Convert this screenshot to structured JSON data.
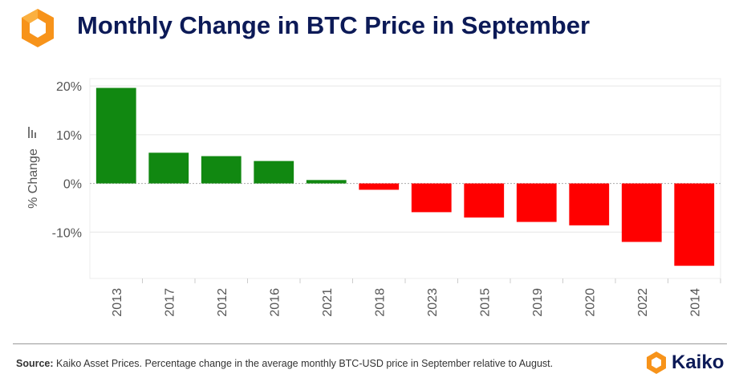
{
  "header": {
    "title": "Monthly Change in BTC Price in September"
  },
  "chart_data": {
    "type": "bar",
    "title": "Monthly Change in BTC Price in September",
    "xlabel": "",
    "ylabel": "% Change",
    "categories": [
      "2013",
      "2017",
      "2012",
      "2016",
      "2021",
      "2018",
      "2023",
      "2015",
      "2019",
      "2020",
      "2022",
      "2014"
    ],
    "values": [
      19.6,
      6.3,
      5.6,
      4.6,
      0.7,
      -1.3,
      -5.9,
      -7.0,
      -7.9,
      -8.6,
      -12.0,
      -16.9
    ],
    "y_ticks": [
      20,
      10,
      0,
      -10
    ],
    "y_tick_labels": [
      "20%",
      "10%",
      "0%",
      "-10%"
    ],
    "ylim": [
      -19.5,
      21.5
    ],
    "grid": true,
    "legend": "none",
    "colors": {
      "positive": "#118811",
      "negative": "#ff0000",
      "grid": "#e6e6e6",
      "zero_line": "#aaaaaa"
    }
  },
  "footer": {
    "source_label": "Source:",
    "source_text": "Kaiko Asset Prices. Percentage change in the average monthly BTC-USD price in September relative to August."
  },
  "brand": {
    "name": "Kaiko",
    "colors": {
      "orange": "#f7931a",
      "navy": "#0c1a57"
    }
  }
}
